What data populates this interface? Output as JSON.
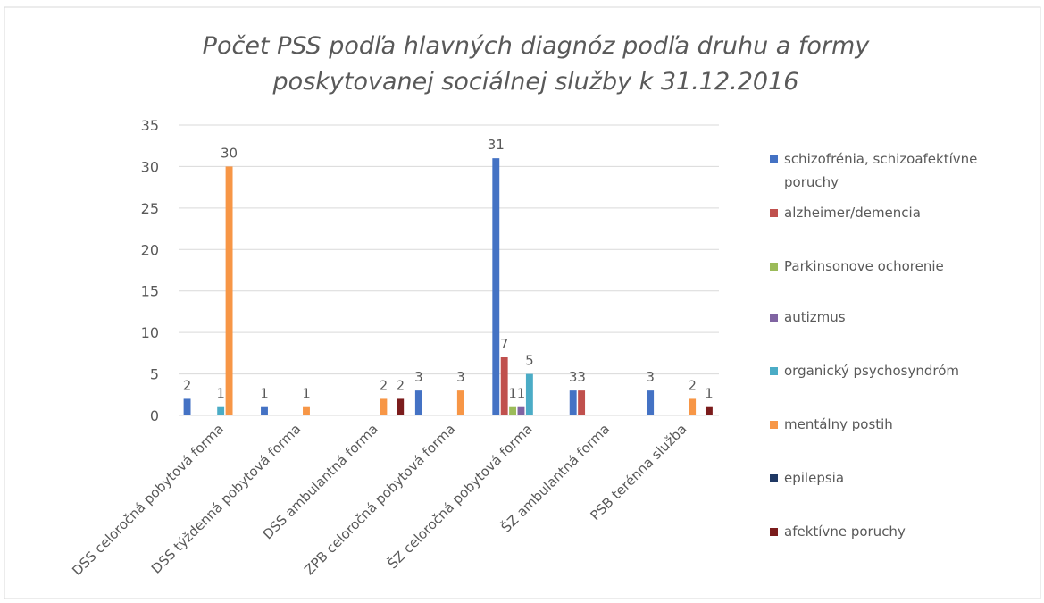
{
  "chart_data": {
    "type": "bar",
    "title": "Počet PSS podľa hlavných diagnóz podľa druhu a formy poskytovanej sociálnej služby k 31.12.2016",
    "categories": [
      "DSS celoročná pobytová forma",
      "DSS týždenná pobytová forma",
      "DSS ambulantná forma",
      "ZPB celoročná pobytová forma",
      "ŠZ celoročná pobytová forma",
      "ŠZ ambulantná forma",
      "PSB terénna služba"
    ],
    "series": [
      {
        "name": "schizofrénia, schizoafektívne poruchy",
        "color": "#4472c4",
        "values": [
          2,
          1,
          null,
          3,
          31,
          3,
          3
        ]
      },
      {
        "name": "alzheimer/demencia",
        "color": "#c0504d",
        "values": [
          null,
          null,
          null,
          null,
          7,
          3,
          null
        ]
      },
      {
        "name": "Parkinsonove ochorenie",
        "color": "#9bbb59",
        "values": [
          null,
          null,
          null,
          null,
          1,
          null,
          null
        ]
      },
      {
        "name": "autizmus",
        "color": "#8064a2",
        "values": [
          null,
          null,
          null,
          null,
          1,
          null,
          null
        ]
      },
      {
        "name": "organický psychosyndróm",
        "color": "#4bacc6",
        "values": [
          1,
          null,
          null,
          null,
          5,
          null,
          null
        ]
      },
      {
        "name": "mentálny postih",
        "color": "#f79646",
        "values": [
          30,
          1,
          2,
          3,
          null,
          null,
          2
        ]
      },
      {
        "name": "epilepsia",
        "color": "#1f3864",
        "values": [
          null,
          null,
          null,
          null,
          null,
          null,
          null
        ]
      },
      {
        "name": "afektívne poruchy",
        "color": "#7b1c1c",
        "values": [
          null,
          null,
          2,
          null,
          null,
          null,
          1
        ]
      }
    ],
    "ylim": [
      0,
      35
    ],
    "yticks": [
      0,
      5,
      10,
      15,
      20,
      25,
      30,
      35
    ],
    "grid": true,
    "legend": "right"
  }
}
